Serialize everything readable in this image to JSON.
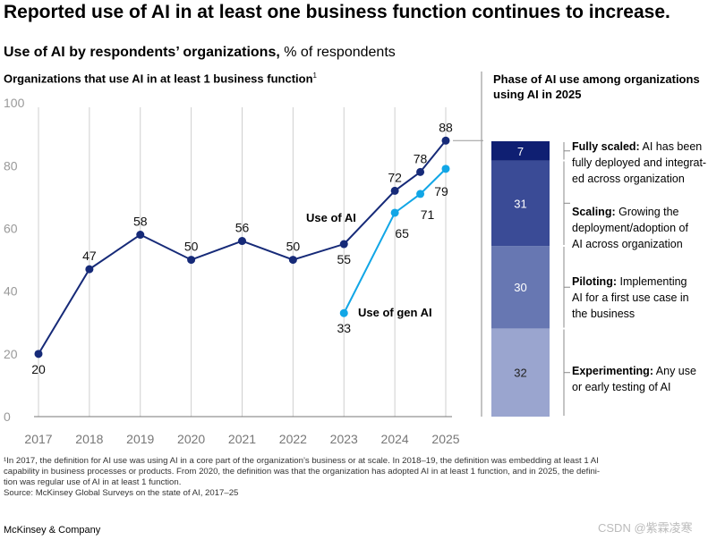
{
  "title": "Reported use of AI in at least one business function continues to increase.",
  "subtitle": {
    "bold": "Use of AI by respondents’ organizations,",
    "rest": " % of respondents"
  },
  "left_heading": {
    "text": "Organizations that use AI in at least 1 business function",
    "sup": "1"
  },
  "right_heading": "Phase of AI use among organizations using AI in 2025",
  "chart_data": [
    {
      "type": "line",
      "title": "Organizations that use AI in at least 1 business function",
      "x_ticks": [
        "2017",
        "2018",
        "2019",
        "2020",
        "2021",
        "2022",
        "2023",
        "2024",
        "2025"
      ],
      "y_ticks": [
        "0",
        "20",
        "40",
        "60",
        "80",
        "100"
      ],
      "ylim": [
        0,
        100
      ],
      "grid": "vertical",
      "series": [
        {
          "name": "Use of AI",
          "color": "#162a78",
          "x": [
            2017,
            2018,
            2019,
            2020,
            2021,
            2022,
            2023,
            2024,
            2024.5,
            2025
          ],
          "values": [
            20,
            47,
            58,
            50,
            56,
            50,
            55,
            72,
            78,
            88
          ],
          "labels": [
            "20",
            "47",
            "58",
            "50",
            "56",
            "50",
            "55",
            "72",
            "78",
            "88"
          ]
        },
        {
          "name": "Use of gen AI",
          "color": "#11a6e6",
          "x": [
            2023,
            2024,
            2024.5,
            2025
          ],
          "values": [
            33,
            65,
            71,
            79
          ],
          "labels": [
            "33",
            "65",
            "71",
            "79"
          ]
        }
      ]
    },
    {
      "type": "bar",
      "stacked": true,
      "title": "Phase of AI use among organizations using AI in 2025",
      "categories": [
        "2025"
      ],
      "segments": [
        {
          "name": "Fully scaled",
          "value": 7,
          "label": "7",
          "color": "#0f1f72",
          "description": "AI has been fully deployed and integrated across organization"
        },
        {
          "name": "Scaling",
          "value": 31,
          "label": "31",
          "color": "#3a4b96",
          "description": "Growing the deployment/adoption of AI across organization"
        },
        {
          "name": "Piloting",
          "value": 30,
          "label": "30",
          "color": "#6777b2",
          "description": "Implementing AI for a first use case in the business"
        },
        {
          "name": "Experimenting",
          "value": 32,
          "label": "32",
          "color": "#9aa5cf",
          "description": "Any use or early testing of AI"
        }
      ]
    }
  ],
  "phases": [
    {
      "name": "Fully scaled:",
      "desc_lines": [
        " AI has been",
        "fully deployed and integrat-",
        "ed across organization"
      ]
    },
    {
      "name": "Scaling:",
      "desc_lines": [
        " Growing the",
        "deployment/adoption of",
        "AI across organization"
      ]
    },
    {
      "name": "Piloting:",
      "desc_lines": [
        " Implementing",
        "AI for a first use case in",
        "the business"
      ]
    },
    {
      "name": "Experimenting:",
      "desc_lines": [
        " Any use",
        "or early testing of AI"
      ]
    }
  ],
  "footnote": [
    "¹In 2017, the definition for AI use was using AI in a core part of the organization’s business or at scale. In 2018–19, the definition was embedding at least 1 AI",
    " capability in business processes or products. From 2020, the definition was that the organization has adopted AI in at least 1 function, and in 2025, the defini-",
    " tion was regular use of AI in at least 1 function.",
    " Source: McKinsey Global Surveys on the state of AI, 2017–25"
  ],
  "publisher": "McKinsey & Company",
  "watermark": "CSDN @紫霖凌寒"
}
